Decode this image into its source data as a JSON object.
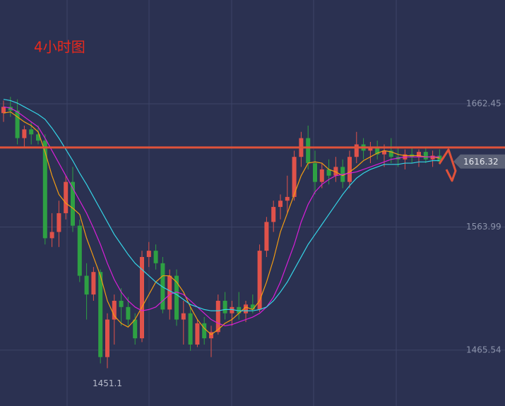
{
  "chart_data": {
    "type": "candlestick",
    "title": "4小时图",
    "up_color": "#e0524a",
    "down_color": "#2ea043",
    "open": [
      1655,
      1660,
      1657,
      1635,
      1642,
      1638,
      1633,
      1555,
      1560,
      1575,
      1600,
      1565,
      1525,
      1510,
      1528,
      1460,
      1490,
      1505,
      1500,
      1490,
      1475,
      1540,
      1545,
      1535,
      1498,
      1525,
      1490,
      1495,
      1470,
      1487,
      1475,
      1480,
      1505,
      1495,
      1500,
      1495,
      1502,
      1498,
      1545,
      1568,
      1580,
      1585,
      1588,
      1620,
      1635,
      1615,
      1600,
      1610,
      1605,
      1612,
      1600,
      1620,
      1630,
      1625,
      1628,
      1622,
      1625,
      1620,
      1618,
      1622,
      1620,
      1624,
      1618,
      1621
    ],
    "high": [
      1665,
      1668,
      1666,
      1645,
      1648,
      1645,
      1638,
      1575,
      1585,
      1605,
      1612,
      1570,
      1535,
      1532,
      1530,
      1495,
      1510,
      1515,
      1508,
      1495,
      1545,
      1552,
      1550,
      1540,
      1530,
      1530,
      1505,
      1500,
      1490,
      1492,
      1485,
      1510,
      1512,
      1505,
      1512,
      1505,
      1510,
      1550,
      1572,
      1585,
      1590,
      1605,
      1625,
      1640,
      1645,
      1625,
      1615,
      1618,
      1620,
      1618,
      1625,
      1640,
      1635,
      1632,
      1633,
      1630,
      1635,
      1628,
      1626,
      1628,
      1626,
      1628,
      1625,
      1626
    ],
    "low": [
      1648,
      1652,
      1630,
      1628,
      1630,
      1630,
      1550,
      1548,
      1548,
      1570,
      1560,
      1520,
      1490,
      1505,
      1455,
      1451.1,
      1470,
      1485,
      1485,
      1470,
      1472,
      1532,
      1530,
      1495,
      1490,
      1485,
      1470,
      1465,
      1468,
      1470,
      1460,
      1478,
      1490,
      1485,
      1490,
      1488,
      1495,
      1496,
      1540,
      1560,
      1570,
      1575,
      1585,
      1612,
      1610,
      1590,
      1595,
      1598,
      1600,
      1595,
      1595,
      1615,
      1618,
      1615,
      1618,
      1612,
      1615,
      1612,
      1610,
      1615,
      1612,
      1615,
      1612,
      1614
    ],
    "close": [
      1660,
      1657,
      1635,
      1642,
      1638,
      1633,
      1555,
      1560,
      1575,
      1600,
      1565,
      1525,
      1510,
      1528,
      1460,
      1490,
      1505,
      1500,
      1490,
      1475,
      1540,
      1545,
      1535,
      1498,
      1525,
      1490,
      1495,
      1470,
      1487,
      1475,
      1480,
      1505,
      1495,
      1500,
      1495,
      1502,
      1498,
      1545,
      1568,
      1580,
      1585,
      1588,
      1620,
      1635,
      1615,
      1600,
      1610,
      1605,
      1612,
      1600,
      1620,
      1630,
      1625,
      1628,
      1622,
      1625,
      1620,
      1618,
      1622,
      1620,
      1624,
      1618,
      1621,
      1616.32
    ],
    "lines": [
      {
        "color": "#f39c12",
        "values": [
          1655,
          1656,
          1652,
          1648,
          1645,
          1640,
          1624,
          1605,
          1590,
          1583,
          1579,
          1574,
          1555,
          1540,
          1525,
          1505,
          1493,
          1487,
          1484,
          1490,
          1500,
          1510,
          1520,
          1525,
          1525,
          1520,
          1512,
          1500,
          1490,
          1483,
          1478,
          1482,
          1487,
          1490,
          1495,
          1500,
          1498,
          1505,
          1520,
          1538,
          1560,
          1575,
          1590,
          1605,
          1615,
          1616,
          1615,
          1610,
          1608,
          1605,
          1608,
          1612,
          1617,
          1620,
          1623,
          1625,
          1624,
          1622,
          1621,
          1621,
          1621,
          1620,
          1620,
          1619
        ]
      },
      {
        "color": "#d81fd8",
        "values": [
          1660,
          1659,
          1656,
          1652,
          1648,
          1644,
          1635,
          1625,
          1615,
          1605,
          1595,
          1585,
          1575,
          1563,
          1550,
          1535,
          1522,
          1512,
          1505,
          1500,
          1497,
          1498,
          1500,
          1505,
          1510,
          1512,
          1510,
          1505,
          1500,
          1495,
          1490,
          1487,
          1485,
          1486,
          1488,
          1490,
          1492,
          1495,
          1500,
          1508,
          1520,
          1535,
          1550,
          1568,
          1582,
          1592,
          1598,
          1602,
          1605,
          1606,
          1607,
          1608,
          1610,
          1612,
          1614,
          1616,
          1618,
          1619,
          1620,
          1620,
          1620,
          1620,
          1620,
          1620
        ]
      },
      {
        "color": "#35d4e6",
        "values": [
          1666,
          1665,
          1663,
          1660,
          1657,
          1654,
          1650,
          1643,
          1635,
          1626,
          1617,
          1607,
          1598,
          1588,
          1578,
          1568,
          1558,
          1550,
          1542,
          1535,
          1530,
          1525,
          1520,
          1516,
          1513,
          1510,
          1506,
          1502,
          1500,
          1498,
          1497,
          1497,
          1498,
          1498,
          1497,
          1497,
          1497,
          1498,
          1500,
          1505,
          1512,
          1520,
          1530,
          1540,
          1550,
          1558,
          1566,
          1574,
          1582,
          1590,
          1597,
          1603,
          1607,
          1610,
          1612,
          1614,
          1614,
          1614,
          1615,
          1615,
          1616,
          1616,
          1617,
          1617
        ]
      }
    ],
    "ylim": [
      1420.9,
      1745.4
    ],
    "yticks": [
      1662.45,
      1563.99,
      1465.54
    ],
    "grid": true,
    "hline": 1627.5,
    "hline_color": "#e0523a",
    "last_price": 1616.32,
    "low_label": 1451.1
  }
}
